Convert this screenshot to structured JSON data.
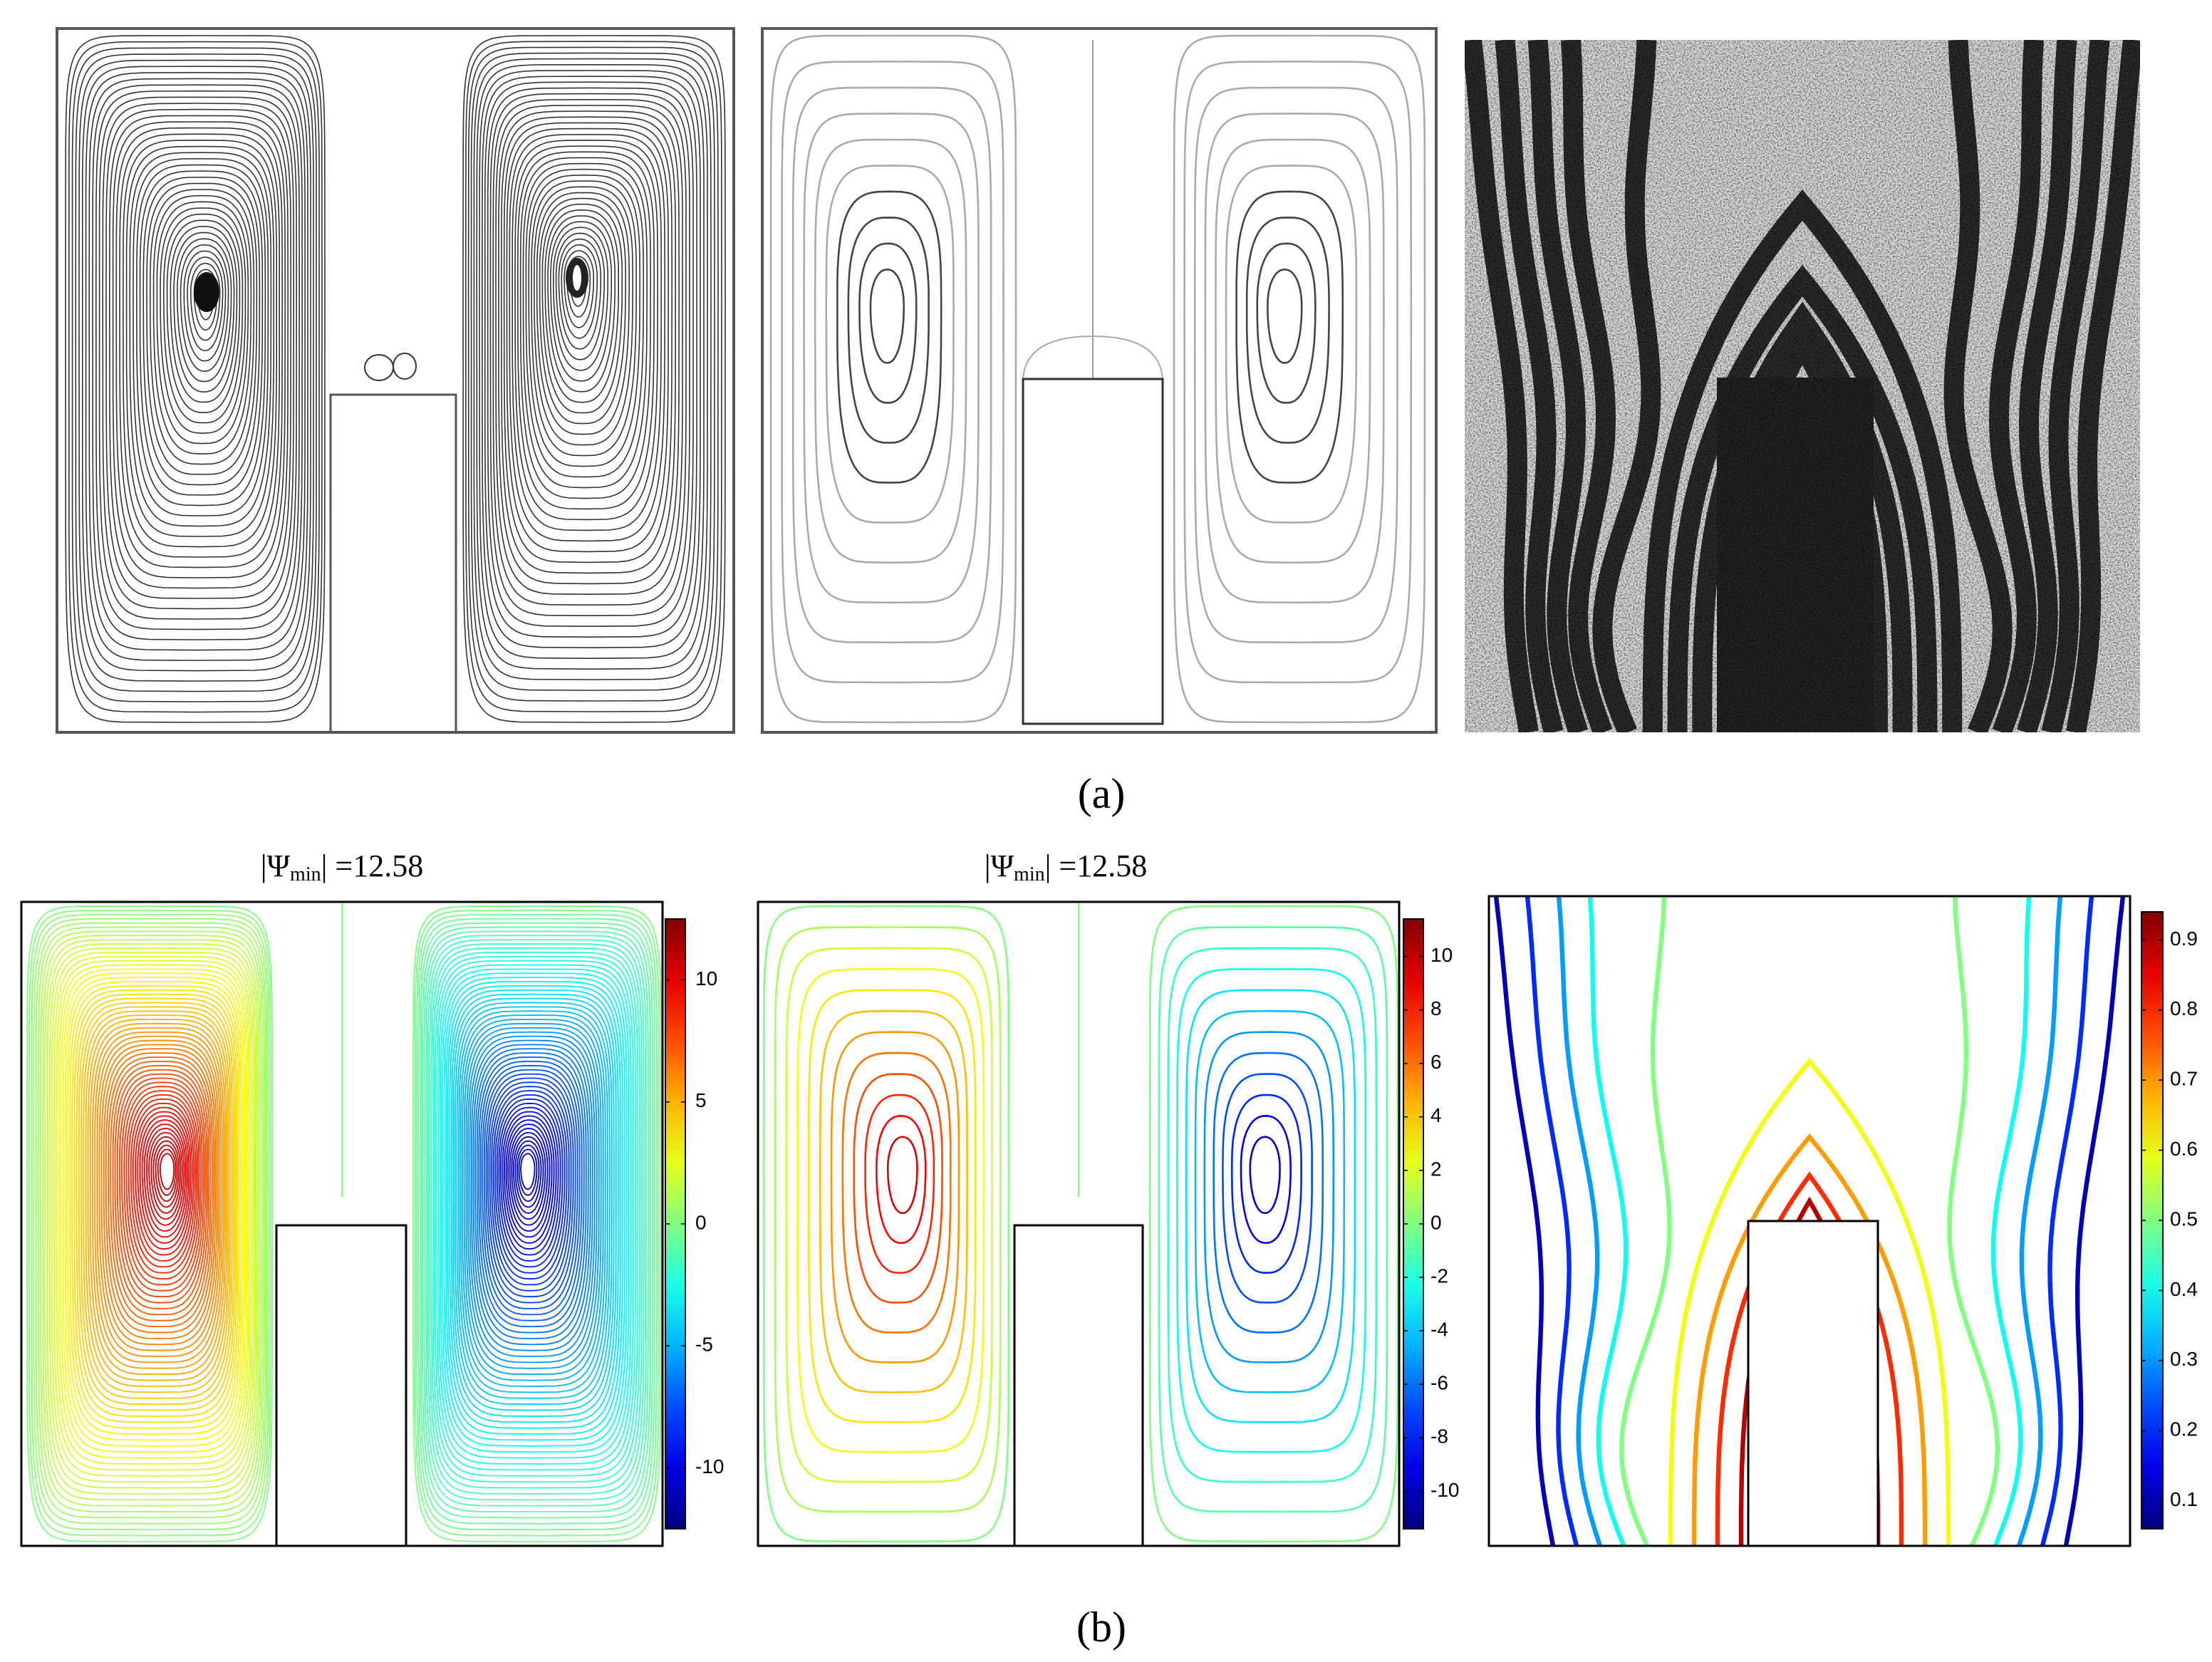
{
  "figure": {
    "caption_a": "(a)",
    "caption_b": "(b)",
    "panels_b": [
      {
        "title": {
          "prefix": "|Ψ",
          "subscript": "min",
          "suffix": "| =12.58"
        },
        "colorbar": {
          "lim": [
            -12.5,
            12.5
          ],
          "ticks": [
            -10,
            -5,
            0,
            5,
            10
          ]
        }
      },
      {
        "title": {
          "prefix": "|Ψ",
          "subscript": "min",
          "suffix": "| =12.58"
        },
        "colorbar": {
          "lim": [
            -11.4,
            11.4
          ],
          "ticks": [
            -10,
            -8,
            -6,
            -4,
            -2,
            0,
            2,
            4,
            6,
            8,
            10
          ]
        }
      },
      {
        "colorbar": {
          "lim": [
            0.06,
            0.94
          ],
          "ticks": [
            0.1,
            0.2,
            0.3,
            0.4,
            0.5,
            0.6,
            0.7,
            0.8,
            0.9
          ]
        }
      }
    ]
  }
}
